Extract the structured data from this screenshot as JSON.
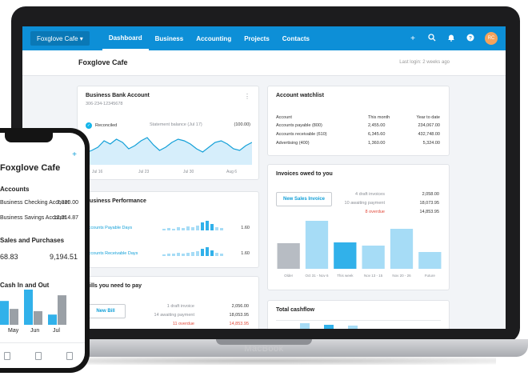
{
  "nav": {
    "org": "Foxglove Cafe ▾",
    "links": [
      "Dashboard",
      "Business",
      "Accounting",
      "Projects",
      "Contacts"
    ],
    "avatar_initials": "RC"
  },
  "header": {
    "title": "Foxglove Cafe",
    "last_login": "Last login: 2 weeks ago"
  },
  "bank": {
    "title": "Business Bank Account",
    "number": "306-234-12345678",
    "reconciled": "Reconciled",
    "statement_label": "Statement balance (Jul 17)",
    "statement_value": "(100.00)",
    "x_labels": [
      "Jul 16",
      "Jul 23",
      "Jul 30",
      "Aug 6"
    ],
    "chart_data": {
      "type": "area",
      "series": [
        {
          "values": [
            55,
            58,
            62,
            70,
            66,
            72,
            68,
            60,
            64,
            70,
            74,
            65,
            58,
            62,
            68,
            72,
            70,
            66,
            60,
            56,
            62,
            68,
            70,
            66,
            60,
            58,
            64,
            68
          ]
        }
      ]
    }
  },
  "watchlist": {
    "title": "Account watchlist",
    "col_account": "Account",
    "col_month": "This month",
    "col_ytd": "Year to date",
    "rows": [
      {
        "name": "Accounts payable (800)",
        "month": "2,455.00",
        "ytd": "234,067.00"
      },
      {
        "name": "Accounts receivable (610)",
        "month": "6,345.60",
        "ytd": "432,748.00"
      },
      {
        "name": "Advertising (400)",
        "month": "1,360.00",
        "ytd": "5,324.00"
      }
    ]
  },
  "invoices": {
    "title": "Invoices owed to you",
    "button": "New Sales Invoice",
    "lines": [
      {
        "label": "4 draft invoices",
        "value": "2,058.00"
      },
      {
        "label": "10 awaiting payment",
        "value": "18,073.95"
      },
      {
        "label": "8 overdue",
        "value": "14,853.95"
      }
    ],
    "chart_data": {
      "type": "bar",
      "categories": [
        "Older",
        "Oct 31 - Nov 6",
        "This week",
        "Nov 13 - 15",
        "Nov 20 - 26",
        "Future"
      ],
      "values": [
        32,
        60,
        33,
        29,
        50,
        21
      ]
    },
    "colors": [
      "#b7bcc3",
      "#a6dcf6",
      "#31b1ea",
      "#a6dcf6",
      "#a6dcf6",
      "#a6dcf6"
    ]
  },
  "performance": {
    "title": "Business Performance",
    "rows": [
      {
        "label": "Accounts Payable Days",
        "value": "1.60"
      },
      {
        "label": "Accounts Receivable Days",
        "value": "1.60"
      }
    ]
  },
  "bills": {
    "title": "Bills you need to pay",
    "button": "New Bill",
    "lines": [
      {
        "label": "1 draft invoice",
        "value": "2,056.00"
      },
      {
        "label": "14 awaiting payment",
        "value": "18,053.95"
      },
      {
        "label": "11 overdue",
        "value": "14,853.95"
      }
    ]
  },
  "cashflow": {
    "title": "Total cashflow"
  },
  "laptop": {
    "brand": "MacBook"
  },
  "phone": {
    "title": "Foxglove Cafe",
    "accounts_heading": "Accounts",
    "accounts": [
      {
        "name": "Business Checking Account",
        "value": "7,320.00"
      },
      {
        "name": "Business Savings Account",
        "value": "12,214.87"
      }
    ],
    "sales_heading": "Sales and Purchases",
    "sales_value_1": "68.83",
    "sales_value_2": "9,194.51",
    "cash_heading": "Cash In and Out",
    "cash_labels": [
      "May",
      "Jun",
      "Jul"
    ],
    "chart_data": {
      "type": "bar",
      "values": [
        42,
        28,
        62,
        24,
        18,
        52
      ]
    }
  }
}
